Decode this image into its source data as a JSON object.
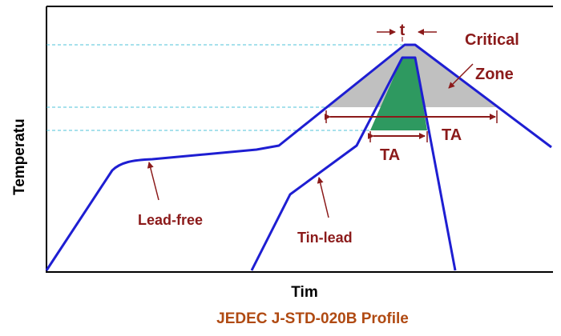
{
  "labels": {
    "y_axis": "Temperatu",
    "x_axis": "Tim",
    "caption": "JEDEC J-STD-020B Profile",
    "t": "t",
    "critical": "Critical",
    "zone": "Zone",
    "ta_outer": "TA",
    "ta_inner": "TA",
    "lead_free": "Lead-free",
    "tin_lead": "Tin-lead"
  },
  "colors": {
    "curve": "#1e1ed2",
    "annotation": "#8b1a1a",
    "critical_zone": "#c0c0c0",
    "tin_lead_zone": "#2e9960",
    "guide_line": "#4fc3d8",
    "frame": "#000000"
  }
}
